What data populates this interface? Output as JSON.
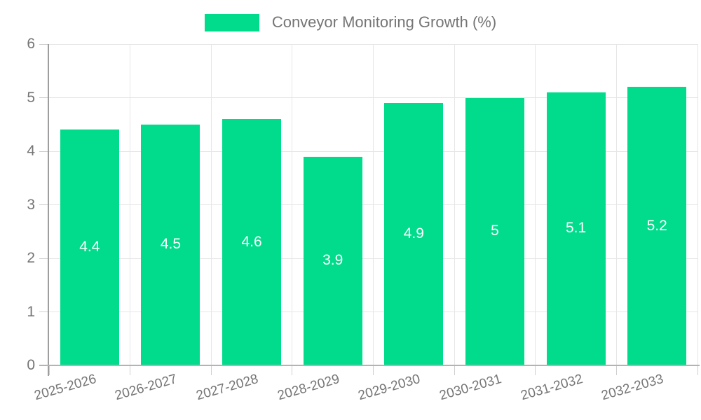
{
  "chart_data": {
    "type": "bar",
    "title": "Conveyor Monitoring Growth (%)",
    "legend_label": "Conveyor Monitoring Growth (%)",
    "legend_position": "top-center",
    "categories": [
      "2025-2026",
      "2026-2027",
      "2027-2028",
      "2028-2029",
      "2029-2030",
      "2030-2031",
      "2031-2032",
      "2032-2033"
    ],
    "values": [
      4.4,
      4.5,
      4.6,
      3.9,
      4.9,
      5,
      5.1,
      5.2
    ],
    "value_labels": [
      "4.4",
      "4.5",
      "4.6",
      "3.9",
      "4.9",
      "5",
      "5.1",
      "5.2"
    ],
    "xlabel": "",
    "ylabel": "",
    "ylim": [
      0,
      6
    ],
    "yticks": [
      0,
      1,
      2,
      3,
      4,
      5,
      6
    ],
    "grid": "horizontal and vertical gridlines on",
    "colors": {
      "bar": "#00dc8c",
      "bar_value_text": "#ffffff",
      "axis_text": "#757575",
      "gridline": "#e6e6e6",
      "tick": "#cfcfcf",
      "x_axis_line": "#b3b3b3",
      "y_axis_line": "#9e9e9e"
    }
  }
}
